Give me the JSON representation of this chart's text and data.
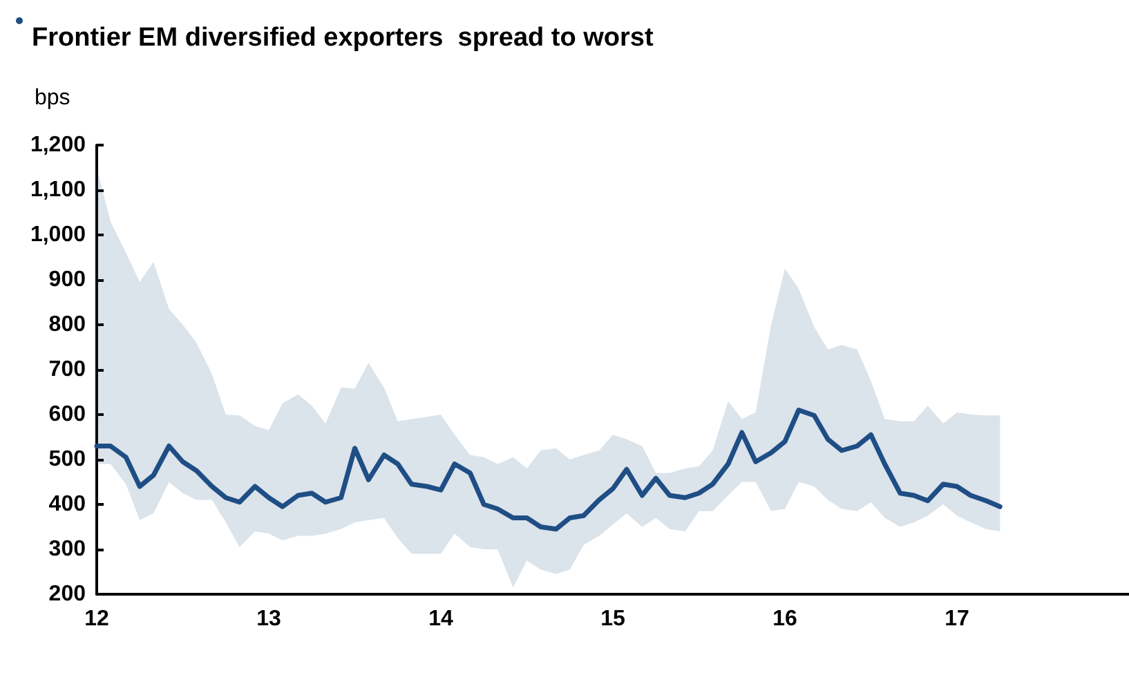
{
  "chart_data": {
    "type": "line",
    "title": "Frontier EM diversified exporters  spread to worst",
    "ylabel": "bps",
    "x": [
      12,
      12.08,
      12.17,
      12.25,
      12.33,
      12.42,
      12.5,
      12.58,
      12.67,
      12.75,
      12.83,
      12.92,
      13,
      13.08,
      13.17,
      13.25,
      13.33,
      13.42,
      13.5,
      13.58,
      13.67,
      13.75,
      13.83,
      13.92,
      14,
      14.08,
      14.17,
      14.25,
      14.33,
      14.42,
      14.5,
      14.58,
      14.67,
      14.75,
      14.83,
      14.92,
      15,
      15.08,
      15.17,
      15.25,
      15.33,
      15.42,
      15.5,
      15.58,
      15.67,
      15.75,
      15.83,
      15.92,
      16,
      16.08,
      16.17,
      16.25,
      16.33,
      16.42,
      16.5,
      16.58,
      16.67,
      16.75,
      16.83,
      16.92,
      17,
      17.08,
      17.17,
      17.25
    ],
    "series": [
      {
        "color": "#1f4e85",
        "values": [
          530,
          530,
          505,
          440,
          465,
          530,
          495,
          475,
          440,
          415,
          405,
          440,
          415,
          395,
          420,
          425,
          405,
          415,
          525,
          455,
          510,
          490,
          445,
          440,
          432,
          490,
          470,
          400,
          390,
          370,
          370,
          350,
          345,
          370,
          375,
          410,
          435,
          478,
          420,
          458,
          420,
          415,
          425,
          445,
          490,
          560,
          495,
          515,
          540,
          610,
          598,
          545,
          520,
          530,
          555,
          490,
          425,
          420,
          408,
          445,
          440,
          420,
          408,
          395
        ],
        "lower": [
          490,
          490,
          445,
          365,
          380,
          450,
          425,
          410,
          410,
          360,
          305,
          340,
          335,
          320,
          330,
          330,
          335,
          345,
          360,
          365,
          370,
          325,
          290,
          290,
          290,
          335,
          305,
          300,
          300,
          215,
          275,
          255,
          245,
          255,
          310,
          330,
          355,
          380,
          350,
          370,
          345,
          340,
          385,
          385,
          420,
          450,
          450,
          385,
          390,
          450,
          440,
          410,
          390,
          385,
          405,
          370,
          350,
          360,
          375,
          400,
          375,
          360,
          345,
          340
        ],
        "upper": [
          1150,
          1030,
          960,
          895,
          940,
          835,
          800,
          760,
          690,
          600,
          598,
          575,
          565,
          625,
          645,
          620,
          580,
          660,
          658,
          715,
          660,
          585,
          590,
          595,
          600,
          555,
          510,
          505,
          490,
          505,
          480,
          520,
          525,
          500,
          510,
          520,
          555,
          545,
          530,
          470,
          470,
          480,
          485,
          520,
          630,
          590,
          605,
          800,
          925,
          880,
          795,
          745,
          755,
          745,
          675,
          590,
          585,
          585,
          620,
          580,
          605,
          600,
          598,
          598
        ]
      }
    ],
    "xlim": [
      12,
      18
    ],
    "xticks": [
      12,
      13,
      14,
      15,
      16,
      17
    ],
    "ylim": [
      200,
      1200
    ],
    "yticks": [
      200,
      300,
      400,
      500,
      600,
      700,
      800,
      900,
      {
        "value": 1000,
        "label": "1,000"
      },
      {
        "value": 1100,
        "label": "1,100"
      },
      {
        "value": 1200,
        "label": "1,200"
      }
    ],
    "grid": false,
    "marker": "none",
    "line_style": "solid"
  }
}
